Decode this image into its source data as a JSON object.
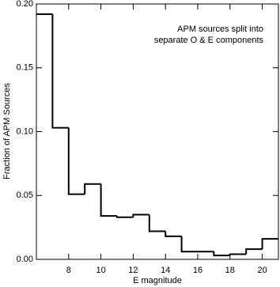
{
  "chart_data": {
    "type": "histogram",
    "annotation": [
      "APM sources split into",
      "separate O & E components"
    ],
    "xlabel": "E magnitude",
    "ylabel": "Fraction of APM Sources",
    "bins": [
      6,
      7,
      8,
      9,
      10,
      11,
      12,
      13,
      14,
      15,
      16,
      17,
      18,
      19,
      20,
      21
    ],
    "values": [
      0.192,
      0.103,
      0.051,
      0.059,
      0.034,
      0.033,
      0.035,
      0.022,
      0.018,
      0.006,
      0.006,
      0.003,
      0.004,
      0.008,
      0.016
    ],
    "color": "#000000",
    "xlim": [
      6,
      21
    ],
    "xticks": [
      8,
      10,
      12,
      14,
      16,
      18,
      20
    ],
    "ylim": [
      0,
      0.2
    ],
    "yticks": [
      {
        "value": 0,
        "label": "0.00"
      },
      {
        "value": 0.05,
        "label": "0.05"
      },
      {
        "value": 0.1,
        "label": "0.10"
      },
      {
        "value": 0.15,
        "label": "0.15"
      },
      {
        "value": 0.2,
        "label": "0.20"
      }
    ]
  }
}
